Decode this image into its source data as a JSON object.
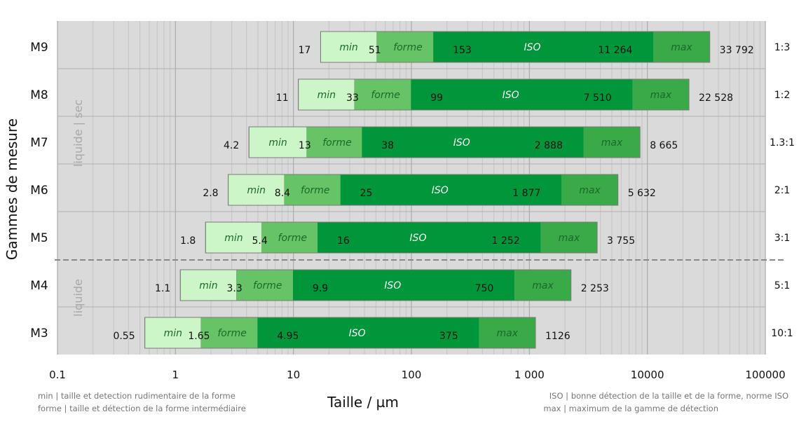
{
  "chart_data": {
    "type": "bar",
    "orientation": "horizontal",
    "x_scale": "log",
    "xlim": [
      0.1,
      100000
    ],
    "x_ticks": [
      "0.1",
      "1",
      "10",
      "100",
      "1 000",
      "10000",
      "100000"
    ],
    "xlabel": "Taille / µm",
    "ylabel": "Gammes de mesure",
    "segment_labels": [
      "min",
      "forme",
      "ISO",
      "max"
    ],
    "colors": {
      "plot_bg": "#dadada",
      "min": "#ccf5c8",
      "forme": "#66c466",
      "ISO": "#009639",
      "max": "#3aaa48",
      "divider": "#888888"
    },
    "groups": [
      {
        "label": "liquide | sec",
        "ranges": [
          "M5",
          "M6",
          "M7",
          "M8",
          "M9"
        ]
      },
      {
        "label": "liquide",
        "ranges": [
          "M3",
          "M4"
        ]
      }
    ],
    "ranges": [
      {
        "name": "M9",
        "values": [
          17,
          51,
          153,
          11264,
          33792
        ],
        "labels": [
          "17",
          "51",
          "153",
          "11 264",
          "33 792"
        ],
        "ratio": "1:3"
      },
      {
        "name": "M8",
        "values": [
          11,
          33,
          99,
          7510,
          22528
        ],
        "labels": [
          "11",
          "33",
          "99",
          "7 510",
          "22 528"
        ],
        "ratio": "1:2"
      },
      {
        "name": "M7",
        "values": [
          4.2,
          13,
          38,
          2888,
          8665
        ],
        "labels": [
          "4.2",
          "13",
          "38",
          "2 888",
          "8 665"
        ],
        "ratio": "1.3:1"
      },
      {
        "name": "M6",
        "values": [
          2.8,
          8.4,
          25,
          1877,
          5632
        ],
        "labels": [
          "2.8",
          "8.4",
          "25",
          "1 877",
          "5 632"
        ],
        "ratio": "2:1"
      },
      {
        "name": "M5",
        "values": [
          1.8,
          5.4,
          16,
          1252,
          3755
        ],
        "labels": [
          "1.8",
          "5.4",
          "16",
          "1 252",
          "3 755"
        ],
        "ratio": "3:1"
      },
      {
        "name": "M4",
        "values": [
          1.1,
          3.3,
          9.9,
          750,
          2253
        ],
        "labels": [
          "1.1",
          "3.3",
          "9.9",
          "750",
          "2 253"
        ],
        "ratio": "5:1"
      },
      {
        "name": "M3",
        "values": [
          0.55,
          1.65,
          4.95,
          375,
          1126
        ],
        "labels": [
          "0.55",
          "1.65",
          "4.95",
          "375",
          "1126"
        ],
        "ratio": "10:1"
      }
    ]
  },
  "notes": {
    "left_line1": "min | taille et detection rudimentaire de la forme",
    "left_line2": "forme | taille et détection de la forme intermédiaire",
    "right_line1": "ISO | bonne détection de la taille et de la forme, norme ISO",
    "right_line2": "max | maximum de la gamme de détection"
  }
}
